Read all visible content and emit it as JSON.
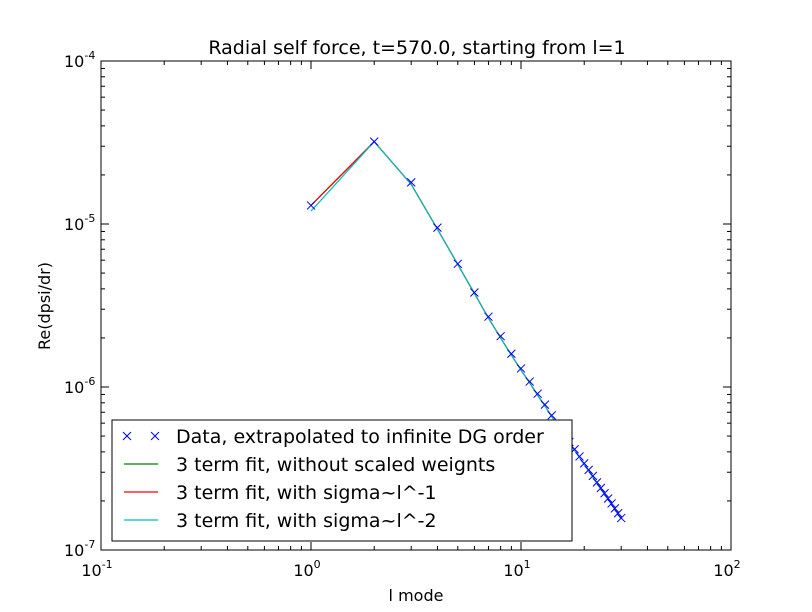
{
  "chart_data": {
    "type": "line",
    "title": "Radial self force, t=570.0, starting from l=1",
    "xlabel": "l mode",
    "ylabel": "Re(dpsi/dr)",
    "xscale": "log",
    "yscale": "log",
    "xlim": [
      0.1,
      100
    ],
    "ylim": [
      1e-07,
      0.0001
    ],
    "x_ticks": [
      {
        "base": "10",
        "exp": "-1",
        "value": 0.1
      },
      {
        "base": "10",
        "exp": "0",
        "value": 1
      },
      {
        "base": "10",
        "exp": "1",
        "value": 10
      },
      {
        "base": "10",
        "exp": "2",
        "value": 100
      }
    ],
    "y_ticks": [
      {
        "base": "10",
        "exp": "-7",
        "value": 1e-07
      },
      {
        "base": "10",
        "exp": "-6",
        "value": 1e-06
      },
      {
        "base": "10",
        "exp": "-5",
        "value": 1e-05
      },
      {
        "base": "10",
        "exp": "-4",
        "value": 0.0001
      }
    ],
    "grid": false,
    "legend_position": "lower-left",
    "series": [
      {
        "name": "Data, extrapolated to infinite DG order",
        "marker": "x",
        "color": "#0000ff",
        "x": [
          1,
          2,
          3,
          4,
          5,
          6,
          7,
          8,
          9,
          10,
          11,
          12,
          13,
          14,
          15,
          16,
          17,
          18,
          19,
          20,
          21,
          22,
          23,
          24,
          25,
          26,
          27,
          28,
          29,
          30
        ],
        "y": [
          1.3e-05,
          3.2e-05,
          1.8e-05,
          9.5e-06,
          5.7e-06,
          3.8e-06,
          2.7e-06,
          2.05e-06,
          1.6e-06,
          1.3e-06,
          1.08e-06,
          9.1e-07,
          7.8e-07,
          6.7e-07,
          5.9e-07,
          5.2e-07,
          4.6e-07,
          4.15e-07,
          3.75e-07,
          3.4e-07,
          3.1e-07,
          2.85e-07,
          2.6e-07,
          2.4e-07,
          2.23e-07,
          2.07e-07,
          1.93e-07,
          1.8e-07,
          1.68e-07,
          1.57e-07
        ]
      },
      {
        "name": "3 term fit, without scaled weignts",
        "marker": "line",
        "color": "#008000",
        "x": [
          1,
          2,
          3,
          4,
          5,
          6,
          7,
          8,
          9,
          10,
          11,
          12,
          13,
          14,
          15,
          16,
          17,
          18,
          19,
          20,
          21,
          22,
          23,
          24,
          25,
          26,
          27,
          28,
          29,
          30
        ],
        "y": [
          1.3e-05,
          3.2e-05,
          1.75e-05,
          9.3e-06,
          5.65e-06,
          3.75e-06,
          2.65e-06,
          2e-06,
          1.57e-06,
          1.27e-06,
          1.06e-06,
          8.9e-07,
          7.65e-07,
          6.6e-07,
          5.8e-07,
          5.1e-07,
          4.55e-07,
          4.1e-07,
          3.7e-07,
          3.35e-07,
          3.06e-07,
          2.8e-07,
          2.57e-07,
          2.37e-07,
          2.2e-07,
          2.04e-07,
          1.9e-07,
          1.77e-07,
          1.66e-07,
          1.55e-07
        ]
      },
      {
        "name": "3 term fit, with sigma~l^-1",
        "marker": "line",
        "color": "#ff0000",
        "x": [
          1,
          2,
          3,
          4,
          5,
          6,
          7,
          8,
          9,
          10,
          11,
          12,
          13,
          14,
          15,
          16,
          17,
          18,
          19,
          20,
          21,
          22,
          23,
          24,
          25,
          26,
          27,
          28,
          29,
          30
        ],
        "y": [
          1.3e-05,
          3.2e-05,
          1.75e-05,
          9.3e-06,
          5.65e-06,
          3.75e-06,
          2.65e-06,
          2e-06,
          1.57e-06,
          1.27e-06,
          1.06e-06,
          8.9e-07,
          7.65e-07,
          6.6e-07,
          5.8e-07,
          5.1e-07,
          4.55e-07,
          4.1e-07,
          3.7e-07,
          3.35e-07,
          3.06e-07,
          2.8e-07,
          2.57e-07,
          2.37e-07,
          2.2e-07,
          2.04e-07,
          1.9e-07,
          1.77e-07,
          1.66e-07,
          1.55e-07
        ]
      },
      {
        "name": "3 term fit, with sigma~l^-2",
        "marker": "line",
        "color": "#00bfbf",
        "x": [
          1,
          2,
          3,
          4,
          5,
          6,
          7,
          8,
          9,
          10,
          11,
          12,
          13,
          14,
          15,
          16,
          17,
          18,
          19,
          20,
          21,
          22,
          23,
          24,
          25,
          26,
          27,
          28,
          29,
          30
        ],
        "y": [
          1.2e-05,
          3.2e-05,
          1.75e-05,
          9.3e-06,
          5.65e-06,
          3.75e-06,
          2.65e-06,
          2e-06,
          1.57e-06,
          1.27e-06,
          1.06e-06,
          8.9e-07,
          7.65e-07,
          6.6e-07,
          5.8e-07,
          5.1e-07,
          4.55e-07,
          4.1e-07,
          3.7e-07,
          3.35e-07,
          3.06e-07,
          2.8e-07,
          2.57e-07,
          2.37e-07,
          2.2e-07,
          2.04e-07,
          1.9e-07,
          1.77e-07,
          1.66e-07,
          1.55e-07
        ]
      }
    ]
  }
}
